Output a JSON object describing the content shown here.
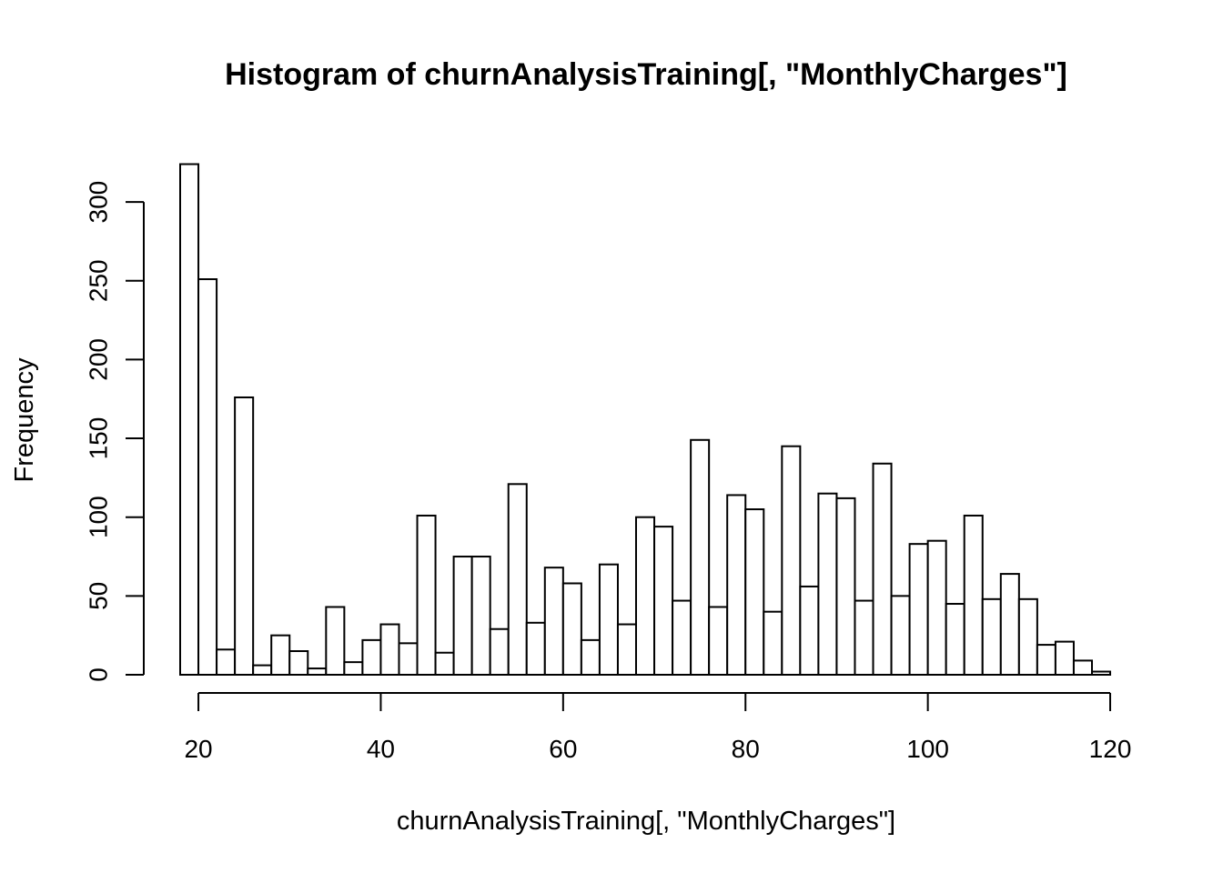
{
  "chart_data": {
    "type": "bar",
    "title": "Histogram of churnAnalysisTraining[, \"MonthlyCharges\"]",
    "xlabel": "churnAnalysisTraining[, \"MonthlyCharges\"]",
    "ylabel": "Frequency",
    "bin_width": 2,
    "bin_start": 18,
    "values": [
      324,
      251,
      16,
      176,
      6,
      25,
      15,
      4,
      43,
      8,
      22,
      32,
      20,
      101,
      14,
      75,
      75,
      29,
      121,
      33,
      68,
      58,
      22,
      70,
      32,
      100,
      94,
      47,
      149,
      43,
      114,
      105,
      40,
      145,
      56,
      115,
      112,
      47,
      134,
      50,
      83,
      85,
      45,
      101,
      48,
      64,
      48,
      19,
      21,
      9,
      2
    ],
    "xlim": [
      18,
      120
    ],
    "ylim": [
      0,
      324
    ],
    "xticks": [
      "20",
      "40",
      "60",
      "80",
      "100",
      "120"
    ],
    "yticks": [
      "0",
      "50",
      "100",
      "150",
      "200",
      "250",
      "300"
    ],
    "grid": false,
    "legend": "none",
    "colors": {
      "bar_fill": "#ffffff",
      "bar_stroke": "#000000"
    }
  }
}
